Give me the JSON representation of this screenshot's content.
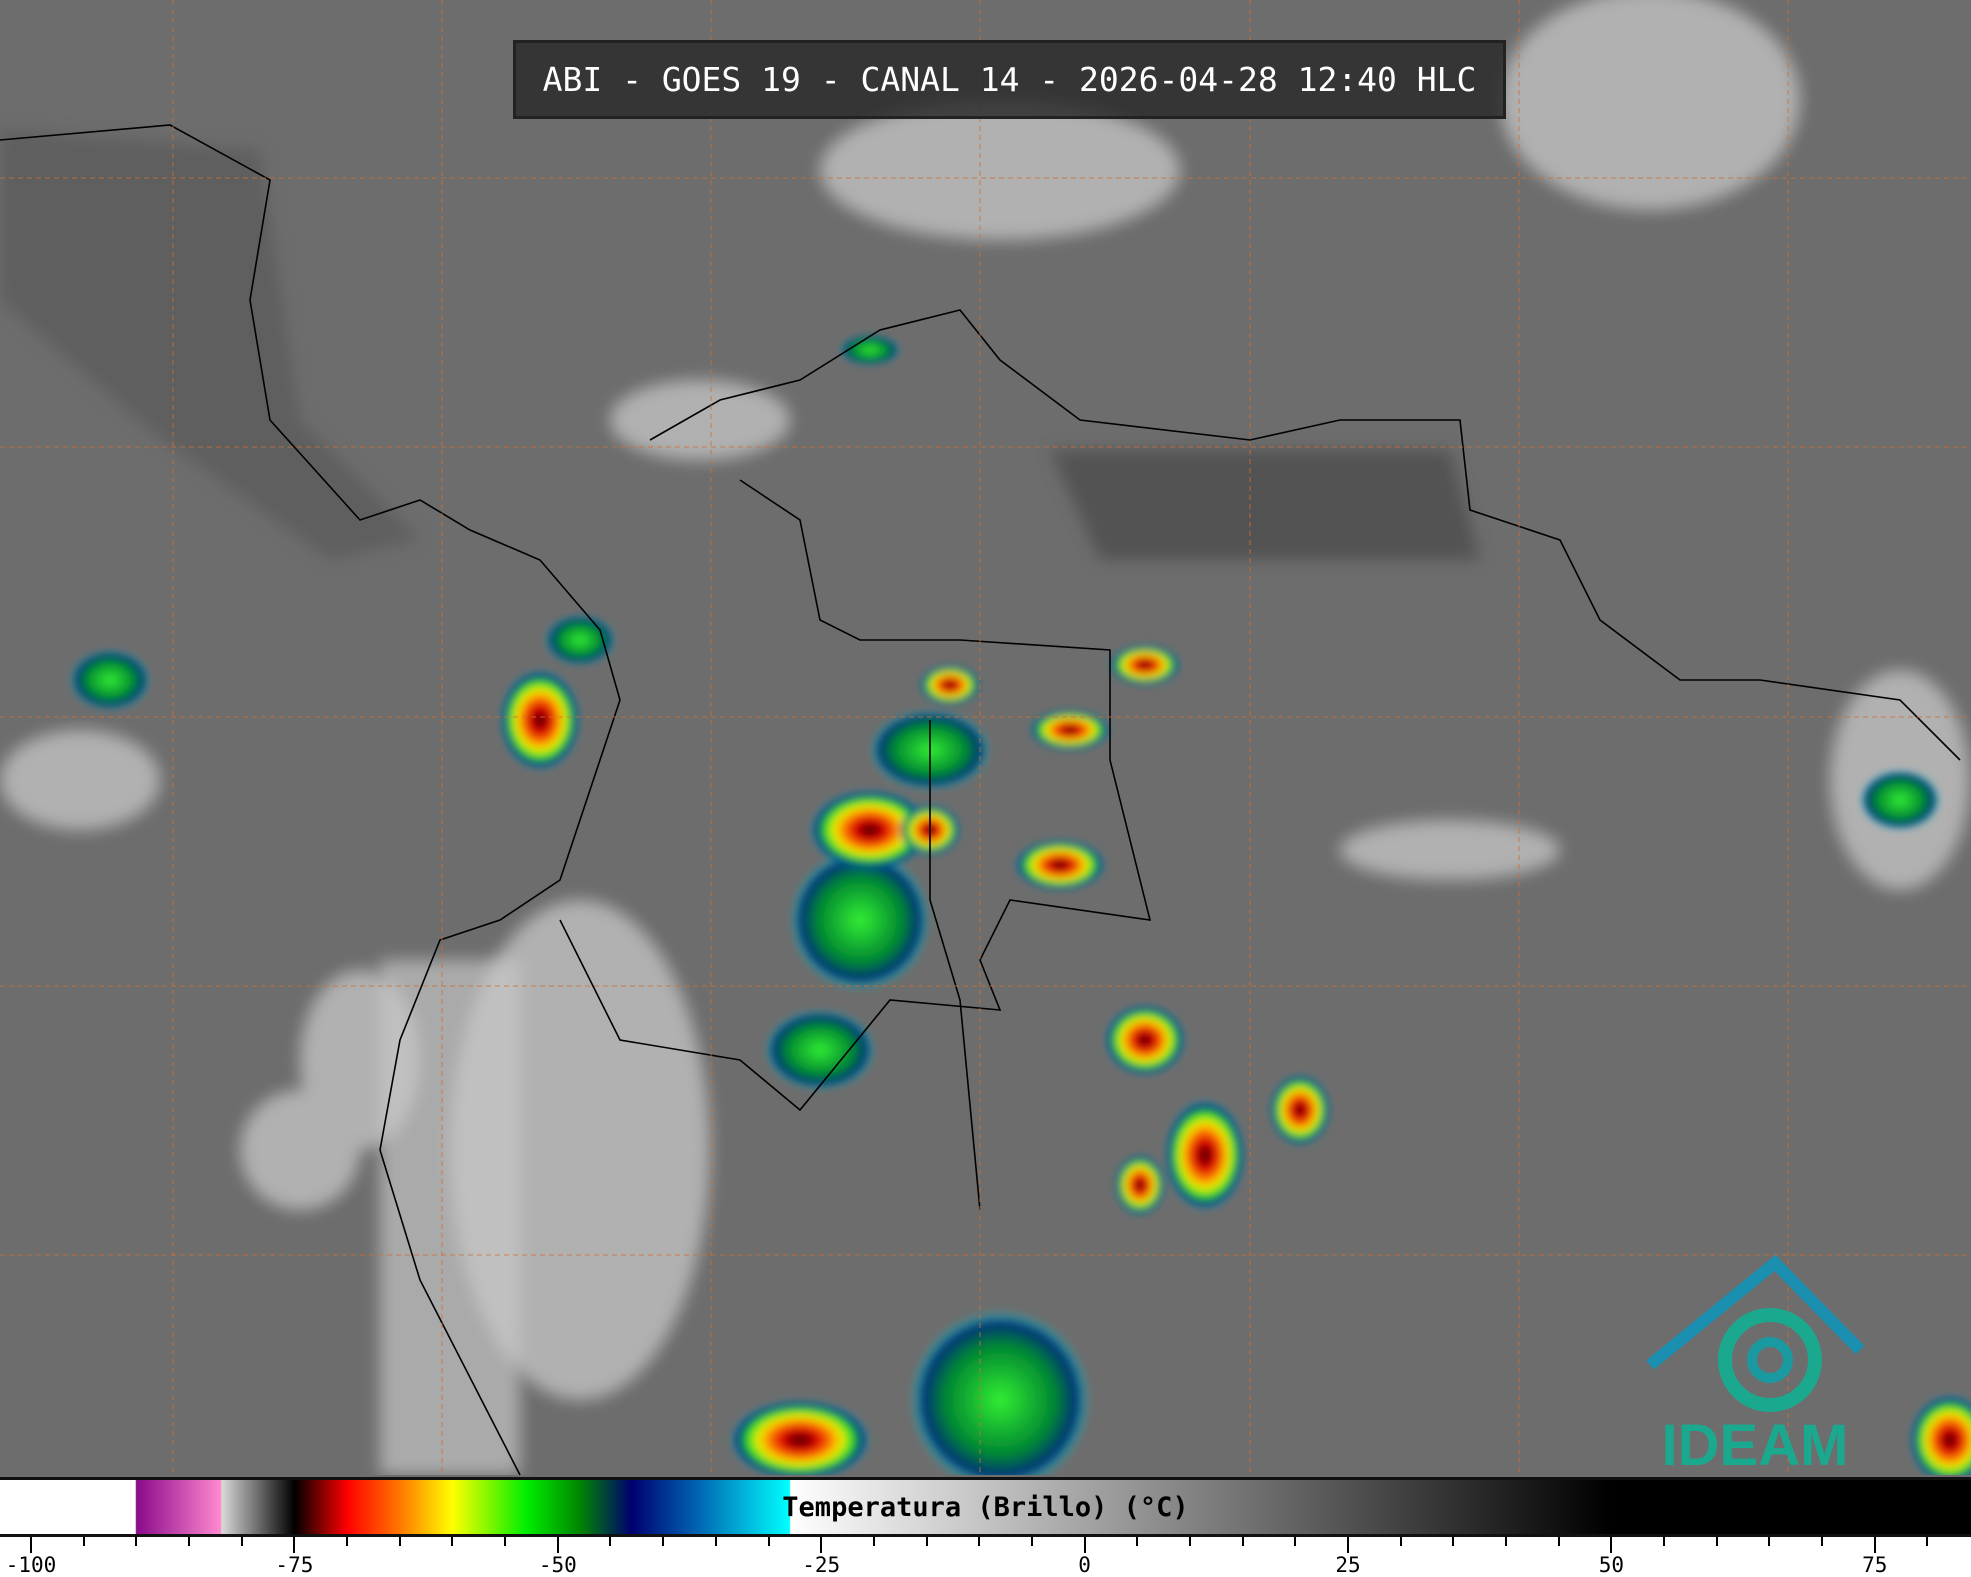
{
  "title": "ABI - GOES 19 - CANAL 14 - 2026-04-28 12:40 HLC",
  "colorbar": {
    "label": "Temperatura (Brillo) (°C)",
    "range": [
      -100,
      85
    ],
    "tick_labels": [
      "-100",
      "-75",
      "-50",
      "-25",
      "0",
      "25",
      "50",
      "75"
    ],
    "minor_tick_step": 5,
    "stops": [
      {
        "t": -100,
        "color": "#ffffff"
      },
      {
        "t": -90.1,
        "color": "#ffffff"
      },
      {
        "t": -90,
        "color": "#8a0a8a"
      },
      {
        "t": -82,
        "color": "#ff88d0"
      },
      {
        "t": -81.9,
        "color": "#d8d8d8"
      },
      {
        "t": -75,
        "color": "#000000"
      },
      {
        "t": -70,
        "color": "#ff0000"
      },
      {
        "t": -65,
        "color": "#ff7700"
      },
      {
        "t": -60,
        "color": "#ffff00"
      },
      {
        "t": -53,
        "color": "#00ee00"
      },
      {
        "t": -48,
        "color": "#008800"
      },
      {
        "t": -43,
        "color": "#000070"
      },
      {
        "t": -37,
        "color": "#0060b0"
      },
      {
        "t": -28,
        "color": "#00ffff"
      },
      {
        "t": -27.9,
        "color": "#ffffff"
      },
      {
        "t": 50,
        "color": "#000000"
      },
      {
        "t": 85,
        "color": "#000000"
      }
    ]
  },
  "logo": {
    "text": "IDEAM",
    "color": "#1aa88f"
  },
  "colors": {
    "graticule": "#d07030",
    "background": "#6e6e6e"
  }
}
